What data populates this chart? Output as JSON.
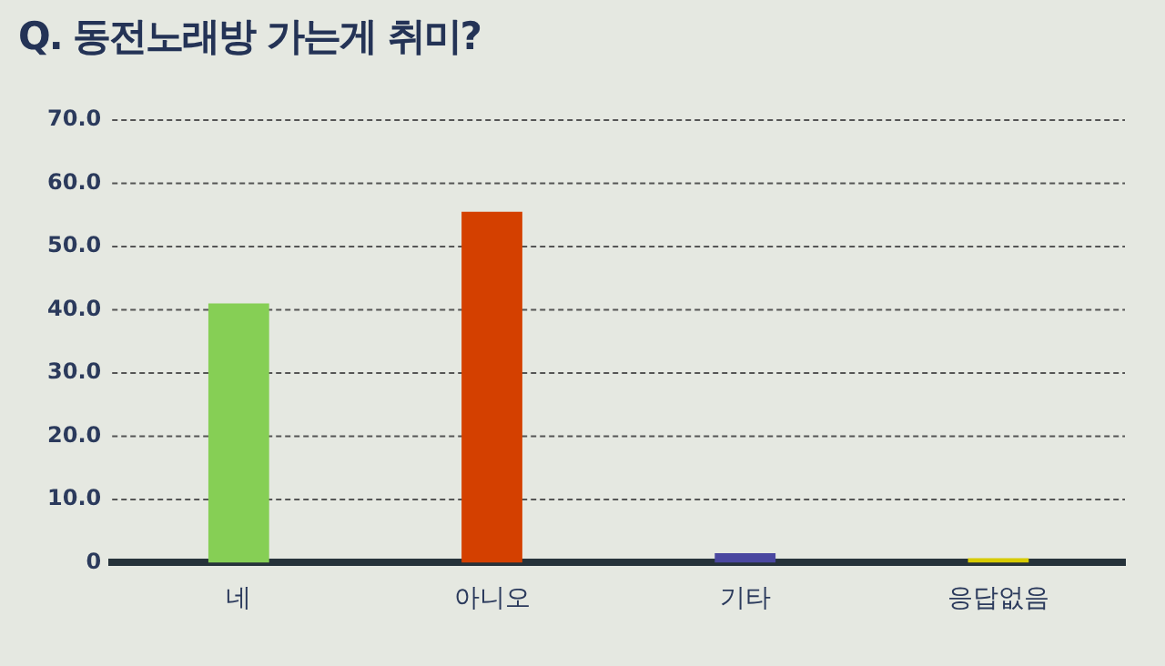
{
  "chart_data": {
    "type": "bar",
    "title": "Q. 동전노래방 가는게 취미?",
    "categories": [
      "네",
      "아니오",
      "기타",
      "응답없음"
    ],
    "values": [
      41.0,
      55.5,
      1.5,
      0.7
    ],
    "colors": [
      "#86cf55",
      "#d44000",
      "#4a47a0",
      "#d7cb00"
    ],
    "ylim": [
      0,
      70
    ],
    "yticks": [
      {
        "value": 0,
        "label": "0"
      },
      {
        "value": 10,
        "label": "10.0"
      },
      {
        "value": 20,
        "label": "20.0"
      },
      {
        "value": 30,
        "label": "30.0"
      },
      {
        "value": 40,
        "label": "40.0"
      },
      {
        "value": 50,
        "label": "50.0"
      },
      {
        "value": 60,
        "label": "60.0"
      },
      {
        "value": 70,
        "label": "70.0"
      }
    ],
    "grid": "y",
    "legend": false
  }
}
